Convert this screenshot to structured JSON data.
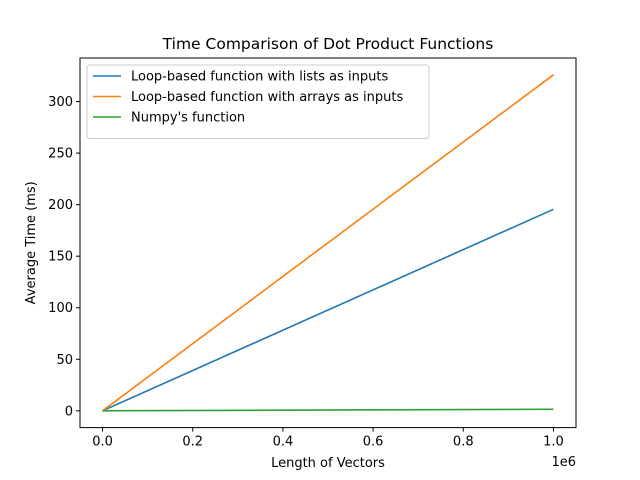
{
  "chart_data": {
    "type": "line",
    "title": "Time Comparison of Dot Product Functions",
    "xlabel": "Length of Vectors",
    "ylabel": "Average Time (ms)",
    "x_scale_label": "1e6",
    "xlim": [
      -0.05,
      1.05
    ],
    "ylim": [
      -16.3,
      342.3
    ],
    "x_ticks": [
      0.0,
      0.2,
      0.4,
      0.6,
      0.8,
      1.0
    ],
    "x_tick_labels": [
      "0.0",
      "0.2",
      "0.4",
      "0.6",
      "0.8",
      "1.0"
    ],
    "y_ticks": [
      0,
      50,
      100,
      150,
      200,
      250,
      300
    ],
    "y_tick_labels": [
      "0",
      "50",
      "100",
      "150",
      "200",
      "250",
      "300"
    ],
    "grid": false,
    "legend_position": "top-left",
    "x": [
      0.0,
      1.0
    ],
    "series": [
      {
        "name": "Loop-based function with lists as inputs",
        "color": "#1f77b4",
        "values": [
          0,
          195.5
        ]
      },
      {
        "name": "Loop-based function with arrays as inputs",
        "color": "#ff7f0e",
        "values": [
          0,
          326
        ]
      },
      {
        "name": "Numpy's function",
        "color": "#2ca02c",
        "values": [
          0,
          1.5
        ]
      }
    ]
  }
}
